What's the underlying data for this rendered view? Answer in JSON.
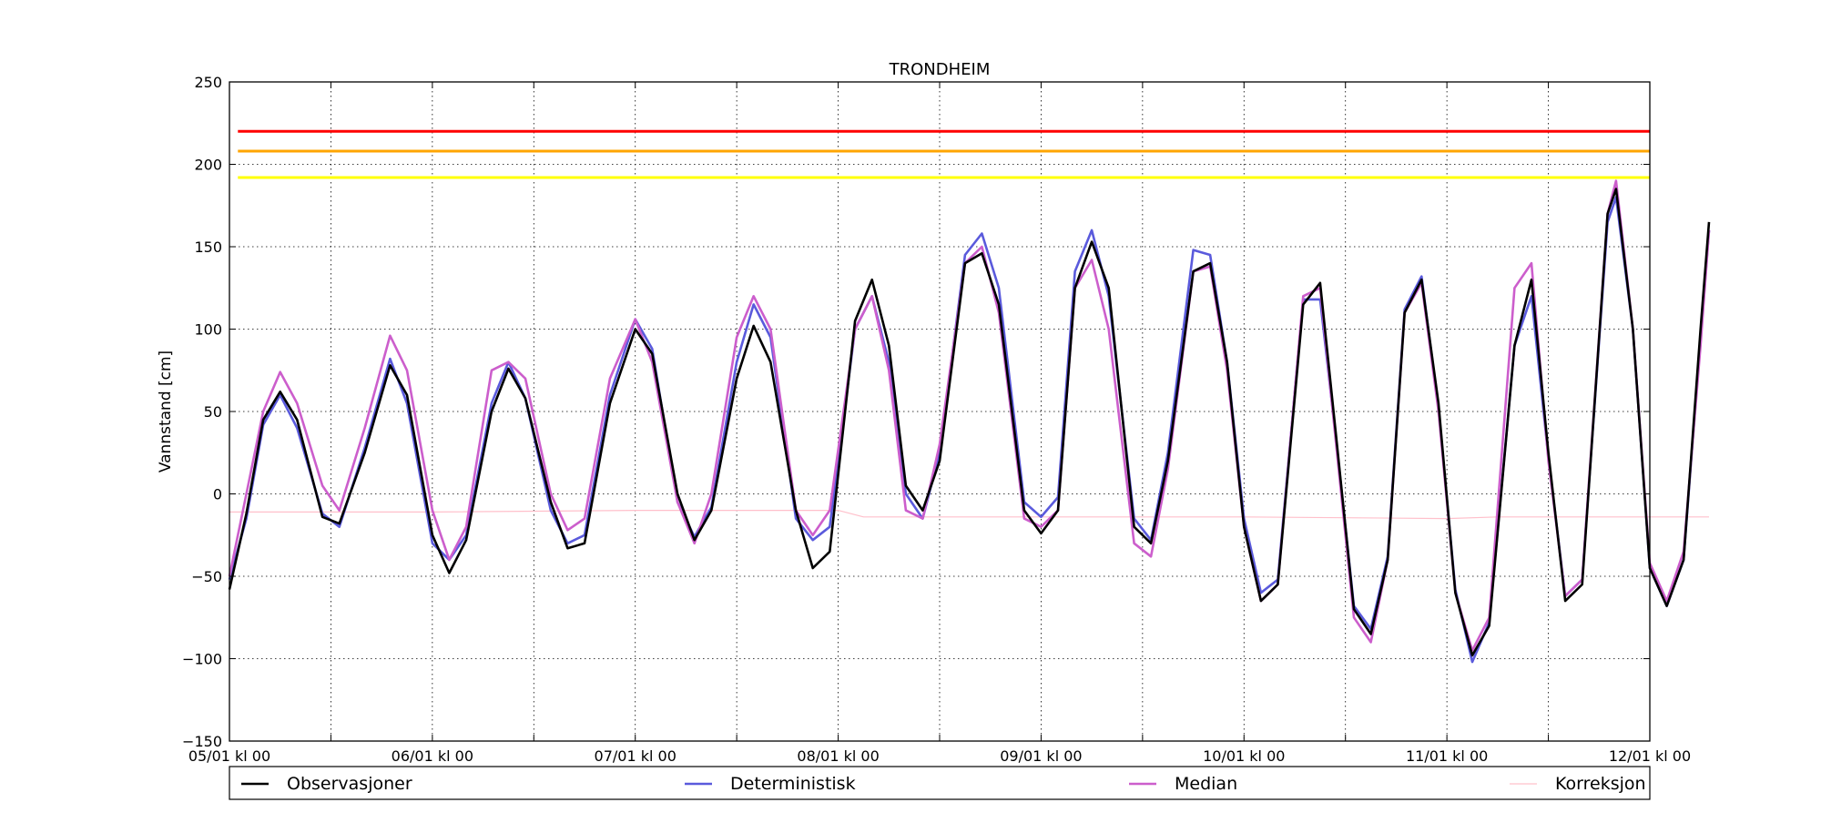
{
  "chart_data": {
    "type": "line",
    "title": "TRONDHEIM",
    "xlabel": "",
    "ylabel": "Vannstand [cm]",
    "ylim": [
      -150,
      250
    ],
    "xlim_hours": [
      0,
      168
    ],
    "yticks": [
      -150,
      -100,
      -50,
      0,
      50,
      100,
      150,
      200,
      250
    ],
    "ytick_labels": [
      "−150",
      "−100",
      "−50",
      "0",
      "50",
      "100",
      "150",
      "200",
      "250"
    ],
    "xticks": [
      "05/01 kl 00",
      "06/01 kl 00",
      "07/01 kl 00",
      "08/01 kl 00",
      "09/01 kl 00",
      "10/01 kl 00",
      "11/01 kl 00",
      "12/01 kl 00"
    ],
    "grid": true,
    "legend_position": "bottom",
    "thresholds": [
      {
        "value": 220,
        "color": "#ff0000"
      },
      {
        "value": 208,
        "color": "#ffa500"
      },
      {
        "value": 192,
        "color": "#ffff00"
      }
    ],
    "series": [
      {
        "name": "Observasjoner",
        "color": "#000000",
        "points": [
          [
            0,
            -58
          ],
          [
            2,
            -12
          ],
          [
            4,
            45
          ],
          [
            6,
            62
          ],
          [
            8,
            45
          ],
          [
            11,
            -14
          ],
          [
            13,
            -18
          ],
          [
            16,
            25
          ],
          [
            19,
            78
          ],
          [
            21,
            60
          ],
          [
            24,
            -25
          ],
          [
            26,
            -48
          ],
          [
            28,
            -28
          ],
          [
            31,
            50
          ],
          [
            33,
            76
          ],
          [
            35,
            58
          ],
          [
            38,
            -5
          ],
          [
            40,
            -33
          ],
          [
            42,
            -30
          ],
          [
            45,
            55
          ],
          [
            48,
            100
          ],
          [
            50,
            85
          ],
          [
            53,
            0
          ],
          [
            55,
            -28
          ],
          [
            57,
            -10
          ],
          [
            60,
            70
          ],
          [
            62,
            102
          ],
          [
            64,
            80
          ],
          [
            67,
            -10
          ],
          [
            69,
            -45
          ],
          [
            71,
            -35
          ],
          [
            74,
            105
          ],
          [
            76,
            130
          ],
          [
            78,
            90
          ],
          [
            80,
            5
          ],
          [
            82,
            -10
          ],
          [
            84,
            20
          ],
          [
            87,
            140
          ],
          [
            89,
            146
          ],
          [
            91,
            115
          ],
          [
            94,
            -10
          ],
          [
            96,
            -24
          ],
          [
            98,
            -10
          ],
          [
            100,
            125
          ],
          [
            102,
            153
          ],
          [
            104,
            125
          ],
          [
            107,
            -20
          ],
          [
            109,
            -30
          ],
          [
            111,
            20
          ],
          [
            114,
            135
          ],
          [
            116,
            140
          ],
          [
            118,
            80
          ],
          [
            120,
            -20
          ],
          [
            122,
            -65
          ],
          [
            124,
            -55
          ],
          [
            127,
            115
          ],
          [
            129,
            128
          ],
          [
            131,
            30
          ],
          [
            133,
            -70
          ],
          [
            135,
            -85
          ],
          [
            137,
            -40
          ],
          [
            139,
            110
          ],
          [
            141,
            130
          ],
          [
            143,
            55
          ],
          [
            145,
            -60
          ],
          [
            147,
            -98
          ],
          [
            149,
            -80
          ],
          [
            152,
            90
          ],
          [
            154,
            130
          ],
          [
            156,
            25
          ],
          [
            158,
            -65
          ],
          [
            160,
            -55
          ],
          [
            163,
            170
          ],
          [
            164,
            185
          ],
          [
            166,
            100
          ],
          [
            168,
            -45
          ],
          [
            170,
            -68
          ],
          [
            172,
            -40
          ],
          [
            174,
            100
          ],
          [
            175,
            165
          ]
        ]
      },
      {
        "name": "Deterministisk",
        "color": "#5a5adc",
        "points": [
          [
            0,
            -52
          ],
          [
            2,
            -15
          ],
          [
            4,
            42
          ],
          [
            6,
            60
          ],
          [
            8,
            40
          ],
          [
            11,
            -12
          ],
          [
            13,
            -20
          ],
          [
            16,
            28
          ],
          [
            19,
            82
          ],
          [
            21,
            55
          ],
          [
            24,
            -30
          ],
          [
            26,
            -40
          ],
          [
            28,
            -25
          ],
          [
            31,
            55
          ],
          [
            33,
            80
          ],
          [
            35,
            58
          ],
          [
            38,
            -10
          ],
          [
            40,
            -30
          ],
          [
            42,
            -25
          ],
          [
            45,
            60
          ],
          [
            48,
            106
          ],
          [
            50,
            88
          ],
          [
            53,
            -5
          ],
          [
            55,
            -26
          ],
          [
            57,
            -8
          ],
          [
            60,
            80
          ],
          [
            62,
            115
          ],
          [
            64,
            95
          ],
          [
            67,
            -15
          ],
          [
            69,
            -28
          ],
          [
            71,
            -20
          ],
          [
            74,
            100
          ],
          [
            76,
            120
          ],
          [
            78,
            80
          ],
          [
            80,
            0
          ],
          [
            82,
            -15
          ],
          [
            84,
            25
          ],
          [
            87,
            145
          ],
          [
            89,
            158
          ],
          [
            91,
            125
          ],
          [
            94,
            -5
          ],
          [
            96,
            -14
          ],
          [
            98,
            -2
          ],
          [
            100,
            135
          ],
          [
            102,
            160
          ],
          [
            104,
            120
          ],
          [
            107,
            -15
          ],
          [
            109,
            -28
          ],
          [
            111,
            25
          ],
          [
            114,
            148
          ],
          [
            116,
            145
          ],
          [
            118,
            80
          ],
          [
            120,
            -15
          ],
          [
            122,
            -60
          ],
          [
            124,
            -52
          ],
          [
            127,
            118
          ],
          [
            129,
            118
          ],
          [
            131,
            28
          ],
          [
            133,
            -68
          ],
          [
            135,
            -82
          ],
          [
            137,
            -38
          ],
          [
            139,
            112
          ],
          [
            141,
            132
          ],
          [
            143,
            52
          ],
          [
            145,
            -58
          ],
          [
            147,
            -102
          ],
          [
            149,
            -78
          ],
          [
            152,
            90
          ],
          [
            154,
            120
          ],
          [
            156,
            22
          ],
          [
            158,
            -62
          ],
          [
            160,
            -52
          ],
          [
            163,
            165
          ],
          [
            164,
            180
          ],
          [
            166,
            100
          ],
          [
            168,
            -45
          ],
          [
            170,
            -68
          ],
          [
            172,
            -40
          ],
          [
            174,
            95
          ],
          [
            175,
            160
          ]
        ]
      },
      {
        "name": "Median",
        "color": "#cc5ecc",
        "points": [
          [
            0,
            -50
          ],
          [
            2,
            0
          ],
          [
            4,
            50
          ],
          [
            6,
            74
          ],
          [
            8,
            55
          ],
          [
            11,
            5
          ],
          [
            13,
            -10
          ],
          [
            16,
            40
          ],
          [
            19,
            96
          ],
          [
            21,
            75
          ],
          [
            24,
            -10
          ],
          [
            26,
            -40
          ],
          [
            28,
            -20
          ],
          [
            31,
            75
          ],
          [
            33,
            80
          ],
          [
            35,
            70
          ],
          [
            38,
            0
          ],
          [
            40,
            -22
          ],
          [
            42,
            -15
          ],
          [
            45,
            70
          ],
          [
            48,
            106
          ],
          [
            50,
            80
          ],
          [
            53,
            -5
          ],
          [
            55,
            -30
          ],
          [
            57,
            0
          ],
          [
            60,
            95
          ],
          [
            62,
            120
          ],
          [
            64,
            100
          ],
          [
            67,
            -10
          ],
          [
            69,
            -25
          ],
          [
            71,
            -10
          ],
          [
            74,
            100
          ],
          [
            76,
            120
          ],
          [
            78,
            75
          ],
          [
            80,
            -10
          ],
          [
            82,
            -15
          ],
          [
            84,
            30
          ],
          [
            87,
            140
          ],
          [
            89,
            150
          ],
          [
            91,
            110
          ],
          [
            94,
            -15
          ],
          [
            96,
            -20
          ],
          [
            98,
            -10
          ],
          [
            100,
            125
          ],
          [
            102,
            142
          ],
          [
            104,
            100
          ],
          [
            107,
            -30
          ],
          [
            109,
            -38
          ],
          [
            111,
            15
          ],
          [
            114,
            135
          ],
          [
            116,
            138
          ],
          [
            118,
            75
          ],
          [
            120,
            -20
          ],
          [
            122,
            -65
          ],
          [
            124,
            -55
          ],
          [
            127,
            120
          ],
          [
            129,
            125
          ],
          [
            131,
            25
          ],
          [
            133,
            -75
          ],
          [
            135,
            -90
          ],
          [
            137,
            -40
          ],
          [
            139,
            110
          ],
          [
            141,
            128
          ],
          [
            143,
            50
          ],
          [
            145,
            -60
          ],
          [
            147,
            -95
          ],
          [
            149,
            -75
          ],
          [
            152,
            125
          ],
          [
            154,
            140
          ],
          [
            156,
            20
          ],
          [
            158,
            -62
          ],
          [
            160,
            -52
          ],
          [
            163,
            170
          ],
          [
            164,
            190
          ],
          [
            166,
            100
          ],
          [
            168,
            -42
          ],
          [
            170,
            -65
          ],
          [
            172,
            -35
          ],
          [
            174,
            90
          ],
          [
            175,
            160
          ]
        ]
      },
      {
        "name": "Korreksjon",
        "color": "#ffc0cb",
        "points": [
          [
            0,
            -11
          ],
          [
            24,
            -11
          ],
          [
            48,
            -10
          ],
          [
            72,
            -10
          ],
          [
            75,
            -14
          ],
          [
            96,
            -14
          ],
          [
            120,
            -14
          ],
          [
            144,
            -15
          ],
          [
            150,
            -14
          ],
          [
            175,
            -14
          ]
        ]
      }
    ]
  }
}
